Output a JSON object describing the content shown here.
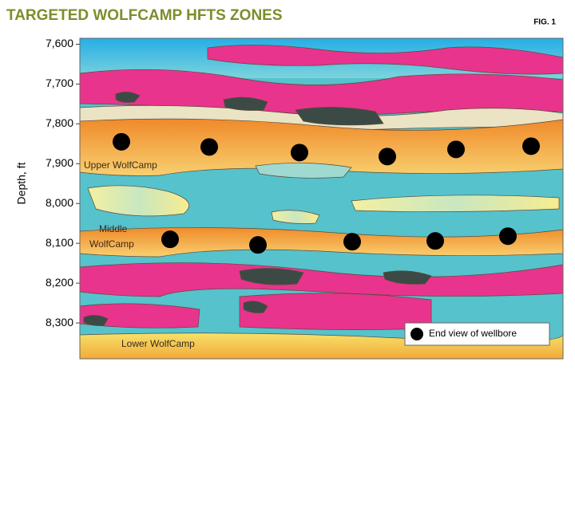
{
  "chart_data": {
    "type": "scatter",
    "title": "TARGETED WOLFCAMP HFTS ZONES",
    "figure_label": "FIG. 1",
    "y_label": "Depth, ft",
    "ylim": [
      7585,
      8390
    ],
    "yticks": [
      {
        "value": 7600,
        "label": "7,600"
      },
      {
        "value": 7700,
        "label": "7,700"
      },
      {
        "value": 7800,
        "label": "7,800"
      },
      {
        "value": 7900,
        "label": "7,900"
      },
      {
        "value": 8000,
        "label": "8,000"
      },
      {
        "value": 8100,
        "label": "8,100"
      },
      {
        "value": 8200,
        "label": "8,200"
      },
      {
        "value": 8300,
        "label": "8,300"
      }
    ],
    "series": [
      {
        "name": "End view of wellbore",
        "color": "#000000",
        "values": [
          7845,
          7858,
          7872,
          7882,
          7864,
          7856,
          8090,
          8104,
          8096,
          8094,
          8082
        ]
      }
    ],
    "annotations": [
      "Upper WolfCamp",
      "Middle",
      "WolfCamp",
      "Lower WolfCamp"
    ],
    "legend_position": "lower right"
  }
}
